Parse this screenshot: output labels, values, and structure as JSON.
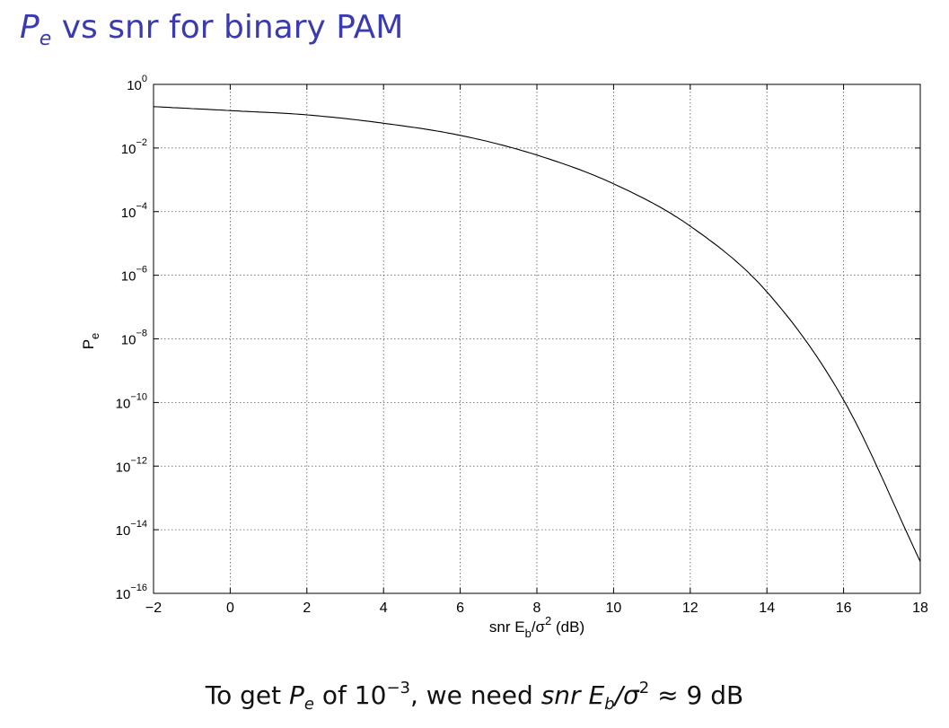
{
  "slide": {
    "title_sym": "P",
    "title_sub": "e",
    "title_rest": "vs snr for binary PAM",
    "caption": {
      "pre": "To get",
      "sym": "P",
      "sub": "e",
      "mid": "of 10",
      "exp": "−3",
      "mid2": ", we need",
      "snr": "snr",
      "eb": "E",
      "eb_sub": "b",
      "slash": "/σ",
      "sig_exp": "2",
      "post": "≈ 9 dB"
    },
    "title_color": "#3b3bb0"
  },
  "chart_data": {
    "type": "line",
    "y_scale": "log",
    "xlim": [
      -2,
      18
    ],
    "ylim_exponent": [
      -16,
      0
    ],
    "x_ticks": [
      -2,
      0,
      2,
      4,
      6,
      8,
      10,
      12,
      14,
      16,
      18
    ],
    "x_tick_labels": [
      "−2",
      "0",
      "2",
      "4",
      "6",
      "8",
      "10",
      "12",
      "14",
      "16",
      "18"
    ],
    "y_tick_exponents": [
      0,
      -2,
      -4,
      -6,
      -8,
      -10,
      -12,
      -14,
      -16
    ],
    "y_tick_exponent_labels": [
      "0",
      "−2",
      "−4",
      "−6",
      "−8",
      "−10",
      "−12",
      "−14",
      "−16"
    ],
    "y_tick_base": "10",
    "grid": true,
    "xlabel": {
      "pre": "snr E",
      "sub": "b",
      "mid": "/σ",
      "sup": "2",
      "post": " (dB)"
    },
    "ylabel": {
      "main": "P",
      "sub": "e"
    },
    "series": [
      {
        "x": [
          -2,
          0,
          2,
          4,
          6,
          8,
          10,
          12,
          14,
          16,
          18
        ],
        "y": [
          0.2,
          0.15,
          0.11,
          0.06,
          0.025,
          0.006,
          0.00075,
          3.5e-05,
          3e-07,
          1.2e-10,
          1e-15
        ]
      }
    ]
  }
}
